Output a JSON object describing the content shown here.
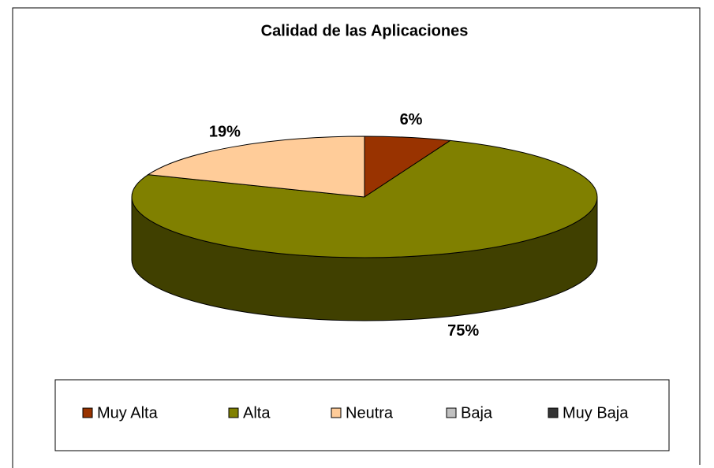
{
  "chart_data": {
    "type": "pie3d",
    "title": "Calidad de las Aplicaciones",
    "categories": [
      "Muy Alta",
      "Alta",
      "Neutra",
      "Baja",
      "Muy Baja"
    ],
    "values": [
      6,
      75,
      19,
      0,
      0
    ],
    "value_labels": [
      "6%",
      "75%",
      "19%",
      null,
      null
    ],
    "colors": [
      "#993300",
      "#808000",
      "#ffcc99",
      "#c0c0c0",
      "#333333"
    ],
    "legend": "bottom"
  }
}
